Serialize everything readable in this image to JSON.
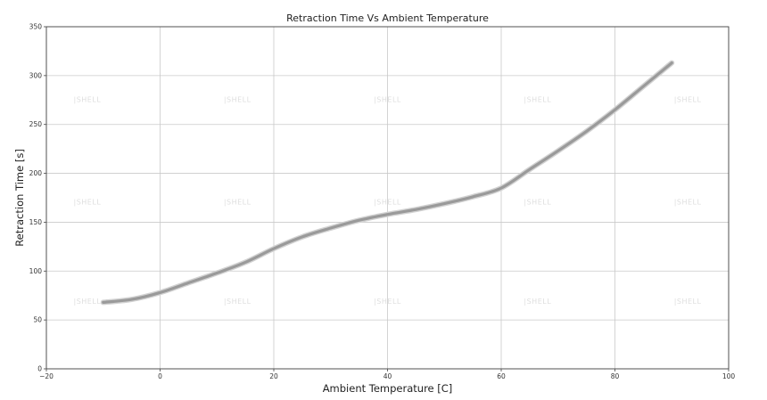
{
  "chart_data": {
    "type": "line",
    "title": "Retraction Time Vs Ambient Temperature",
    "xlabel": "Ambient Temperature  [C]",
    "ylabel": "Retraction Time [s]",
    "xlim": [
      -20,
      100
    ],
    "ylim": [
      0,
      350
    ],
    "xticks": [
      -20,
      0,
      20,
      40,
      60,
      80,
      100
    ],
    "yticks": [
      0,
      50,
      100,
      150,
      200,
      250,
      300,
      350
    ],
    "xtick_labels": [
      "−20",
      "0",
      "20",
      "40",
      "60",
      "80",
      "100"
    ],
    "ytick_labels": [
      "0",
      "50",
      "100",
      "150",
      "200",
      "250",
      "300",
      "350"
    ],
    "grid": true,
    "series": [
      {
        "color": "#9a9a9a",
        "x": [
          -10,
          -5,
          0,
          5,
          10,
          15,
          20,
          25,
          30,
          35,
          40,
          45,
          50,
          55,
          60,
          65,
          70,
          75,
          80,
          85,
          90
        ],
        "y": [
          68,
          71,
          78,
          88,
          98,
          109,
          123,
          135,
          144,
          152,
          158,
          163,
          169,
          176,
          185,
          204,
          223,
          243,
          265,
          289,
          313
        ]
      }
    ],
    "watermarks": [
      "SHELL"
    ]
  }
}
